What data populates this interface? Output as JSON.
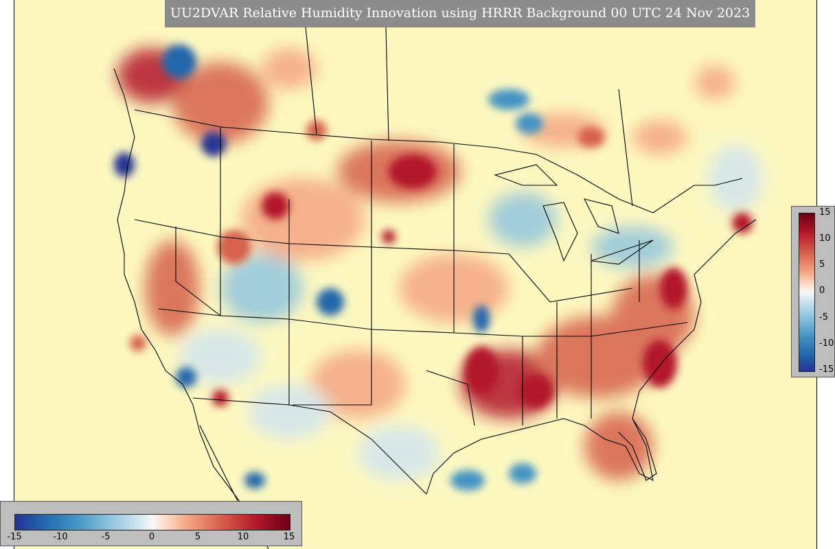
{
  "title": "UU2DVAR Relative Humidity Innovation using HRRR Background 00 UTC 24 Nov 2023",
  "colorbar": {
    "ticks": [
      "-15",
      "-10",
      "-5",
      "0",
      "5",
      "10",
      "15"
    ],
    "min": -15,
    "max": 15
  },
  "colors": {
    "background": "#fdf8c0",
    "positive_strong": "#b2182b",
    "positive_mid": "#f4a582",
    "negative_strong": "#253494",
    "negative_mid": "#92c5de",
    "panel": "#bdbdbd",
    "title_box": "#8c8c8c"
  }
}
